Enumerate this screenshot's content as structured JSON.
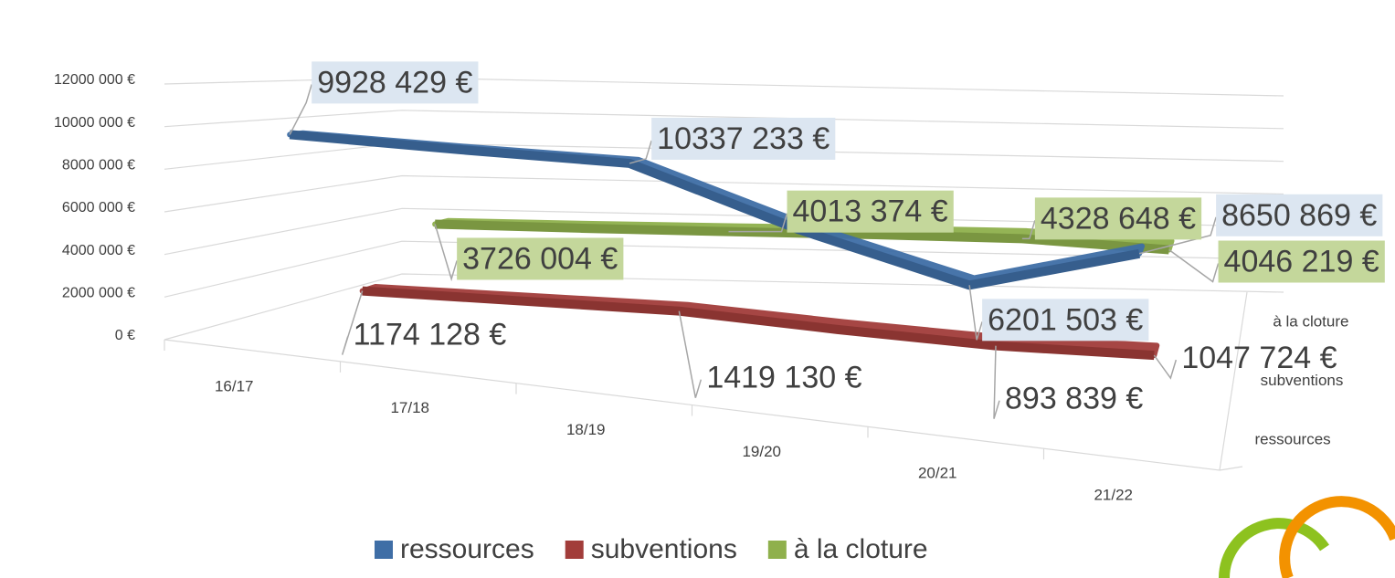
{
  "chart_data": {
    "type": "line3d",
    "categories": [
      "16/17",
      "17/18",
      "18/19",
      "19/20",
      "20/21",
      "21/22"
    ],
    "series": [
      {
        "name": "ressources",
        "color": "#3f6ea6",
        "label_bg": "#dce6f1",
        "values": [
          9928429,
          10100000,
          10337233,
          8000000,
          6201503,
          8650869
        ],
        "value_labels": [
          "9928 429 €",
          null,
          "10337 233 €",
          null,
          "6201 503 €",
          "8650 869 €"
        ]
      },
      {
        "name": "subventions",
        "color": "#a23d3a",
        "label_bg": null,
        "values": [
          1174128,
          1300000,
          1419130,
          1100000,
          893839,
          1047724
        ],
        "value_labels": [
          "1174 128 €",
          null,
          "1419 130 €",
          null,
          "893 839 €",
          "1047 724 €"
        ]
      },
      {
        "name": "à la cloture",
        "color": "#8fb04c",
        "label_bg": "#c4d79b",
        "values": [
          3726004,
          3850000,
          4013374,
          4200000,
          4328648,
          4046219
        ],
        "value_labels": [
          "3726 004 €",
          null,
          "4013 374 €",
          null,
          "4328 648 €",
          "4046 219 €"
        ]
      }
    ],
    "ylim": [
      0,
      12000000
    ],
    "yticks": [
      {
        "value": 0,
        "label": "0 €"
      },
      {
        "value": 2000000,
        "label": "2000 000 €"
      },
      {
        "value": 4000000,
        "label": "4000 000 €"
      },
      {
        "value": 6000000,
        "label": "6000 000 €"
      },
      {
        "value": 8000000,
        "label": "8000 000 €"
      },
      {
        "value": 10000000,
        "label": "10000 000 €"
      },
      {
        "value": 12000000,
        "label": "12000 000 €"
      }
    ],
    "grid": true,
    "legend": "bottom"
  }
}
